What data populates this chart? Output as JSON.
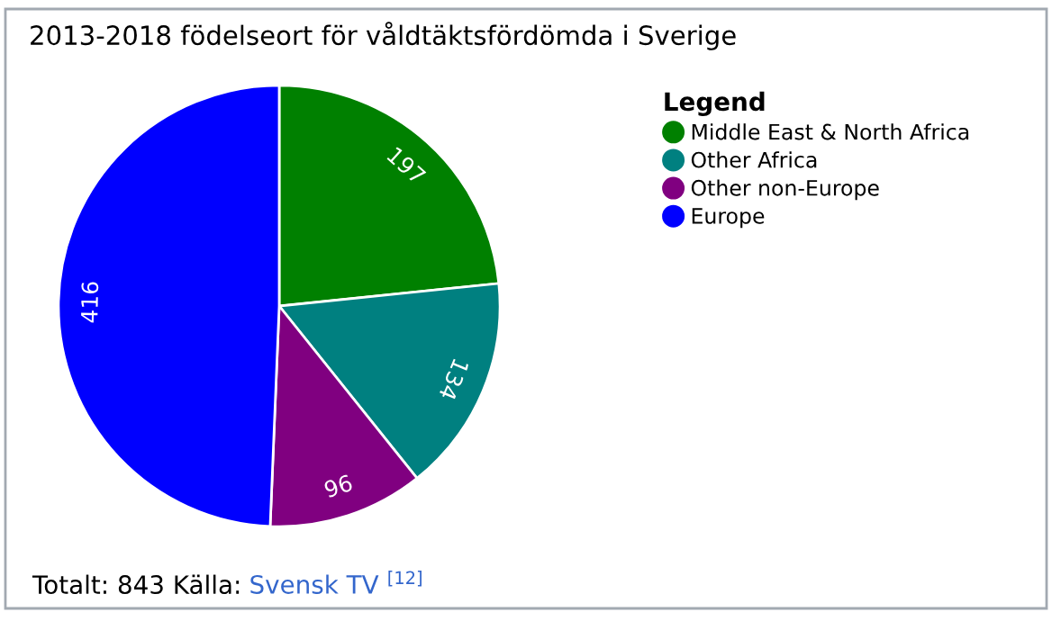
{
  "chart_data": {
    "type": "pie",
    "title": "2013-2018 födelseort för våldtäktsfördömda i Sverige",
    "legend_title": "Legend",
    "legend": "right",
    "categories": [
      "Middle East & North Africa",
      "Other Africa",
      "Other non-Europe",
      "Europe"
    ],
    "values": [
      197,
      134,
      96,
      416
    ],
    "colors": [
      "#008000",
      "#008080",
      "#800080",
      "#0000ff"
    ],
    "data_labels": true,
    "annotations": [
      "Totalt: 843 Källa:",
      "Svensk TV $^{[12]}$"
    ]
  }
}
